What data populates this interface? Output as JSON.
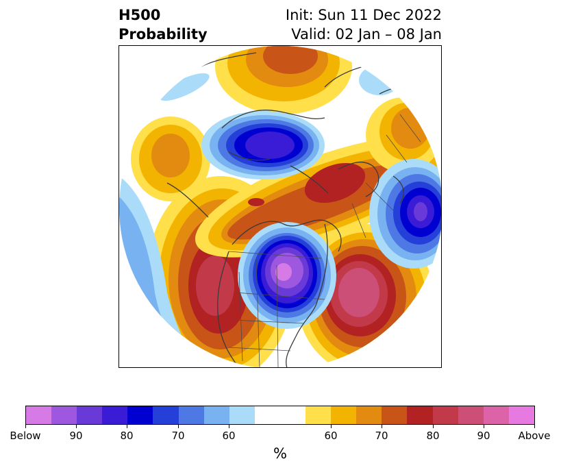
{
  "header": {
    "title_line1": "H500",
    "title_line2": "Probability",
    "init_text": "Init: Sun 11 Dec 2022",
    "valid_text": "Valid: 02 Jan – 08 Jan"
  },
  "map": {
    "projection": "polar-stereographic",
    "region": "Northern Hemisphere / North America",
    "features": [
      "coastlines",
      "country-borders",
      "state-borders"
    ],
    "anomalies": [
      {
        "name": "below",
        "location": "Great Lakes / Hudson Bay",
        "max_class": "Below"
      },
      {
        "name": "below",
        "location": "Arctic Ocean / Canadian Archipelago",
        "max_class": "90"
      },
      {
        "name": "below",
        "location": "Scandinavia / Europe",
        "max_class": "90"
      },
      {
        "name": "below",
        "location": "Northeast Pacific",
        "max_class": "70"
      },
      {
        "name": "above",
        "location": "Western US / Pacific Northwest",
        "max_class": "90"
      },
      {
        "name": "above",
        "location": "North Atlantic",
        "max_class": "90"
      },
      {
        "name": "above",
        "location": "Greenland",
        "max_class": "80"
      },
      {
        "name": "above",
        "location": "Siberia / North Pacific",
        "max_class": "80"
      }
    ]
  },
  "colorbar": {
    "label": "%",
    "colors": [
      "#d67ae6",
      "#9e58e0",
      "#6a3ad8",
      "#3a1bd6",
      "#0000d0",
      "#2540d8",
      "#4e78e4",
      "#78b2f0",
      "#aadcfa",
      "#ffffff",
      "#ffffff",
      "#ffe04a",
      "#f2b400",
      "#e38a10",
      "#c85418",
      "#b22222",
      "#c23a4a",
      "#cc4f78",
      "#dd63a8",
      "#e67ae0"
    ],
    "ticks": [
      "Below",
      "90",
      "80",
      "70",
      "60",
      "60",
      "70",
      "80",
      "90",
      "Above"
    ]
  }
}
